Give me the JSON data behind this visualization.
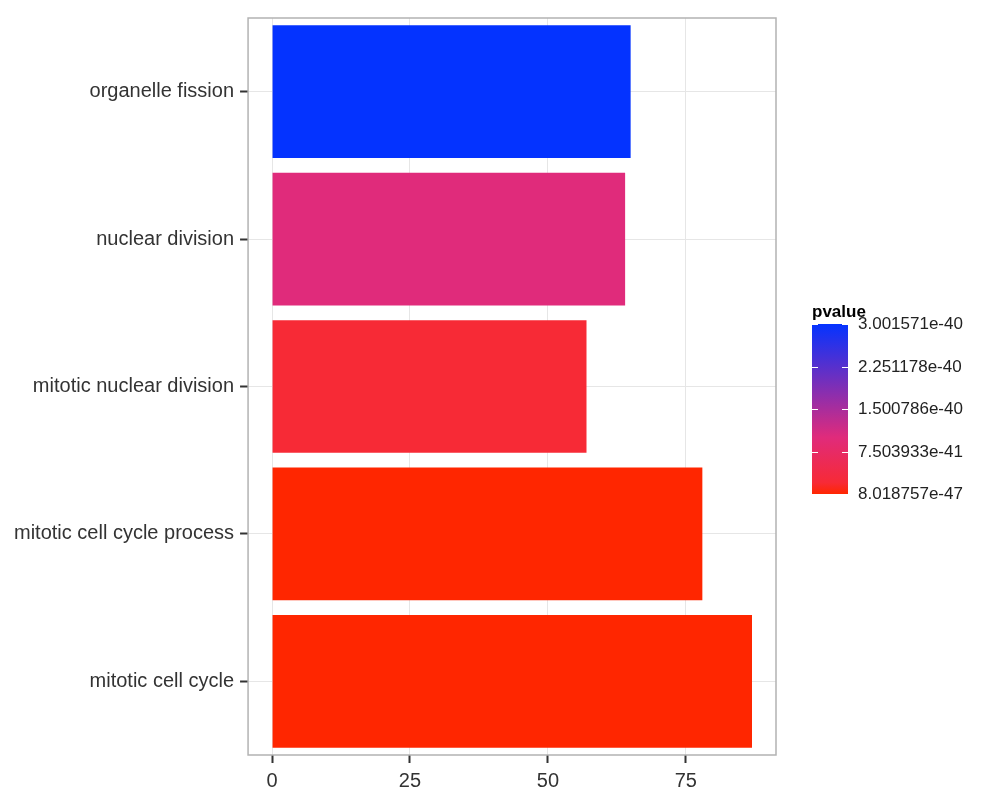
{
  "chart_data": {
    "type": "bar",
    "orientation": "horizontal",
    "categories": [
      "organelle fission",
      "nuclear division",
      "mitotic nuclear division",
      "mitotic cell cycle process",
      "mitotic cell cycle"
    ],
    "values": [
      65,
      64,
      57,
      78,
      87
    ],
    "colors": [
      "#0433ff",
      "#e02b7b",
      "#f72a36",
      "#ff2600",
      "#ff2600"
    ],
    "cvalues": [
      3.001571e-40,
      1e-40,
      2e-41,
      8.018757e-47,
      8.018757e-47
    ],
    "clabel": "pvalue",
    "clim": [
      8.018757e-47,
      3.001571e-40
    ],
    "cticks": [
      {
        "value": 3.001571e-40,
        "label": "3.001571e-40"
      },
      {
        "value": 2.251178e-40,
        "label": "2.251178e-40"
      },
      {
        "value": 1.500786e-40,
        "label": "1.500786e-40"
      },
      {
        "value": 7.503933e-41,
        "label": "7.503933e-41"
      },
      {
        "value": 8.018757e-47,
        "label": "8.018757e-47"
      }
    ],
    "xlim": [
      -4.35,
      91.35
    ],
    "xticks": [
      0,
      25,
      50,
      75
    ],
    "grid": true,
    "legend": false
  }
}
